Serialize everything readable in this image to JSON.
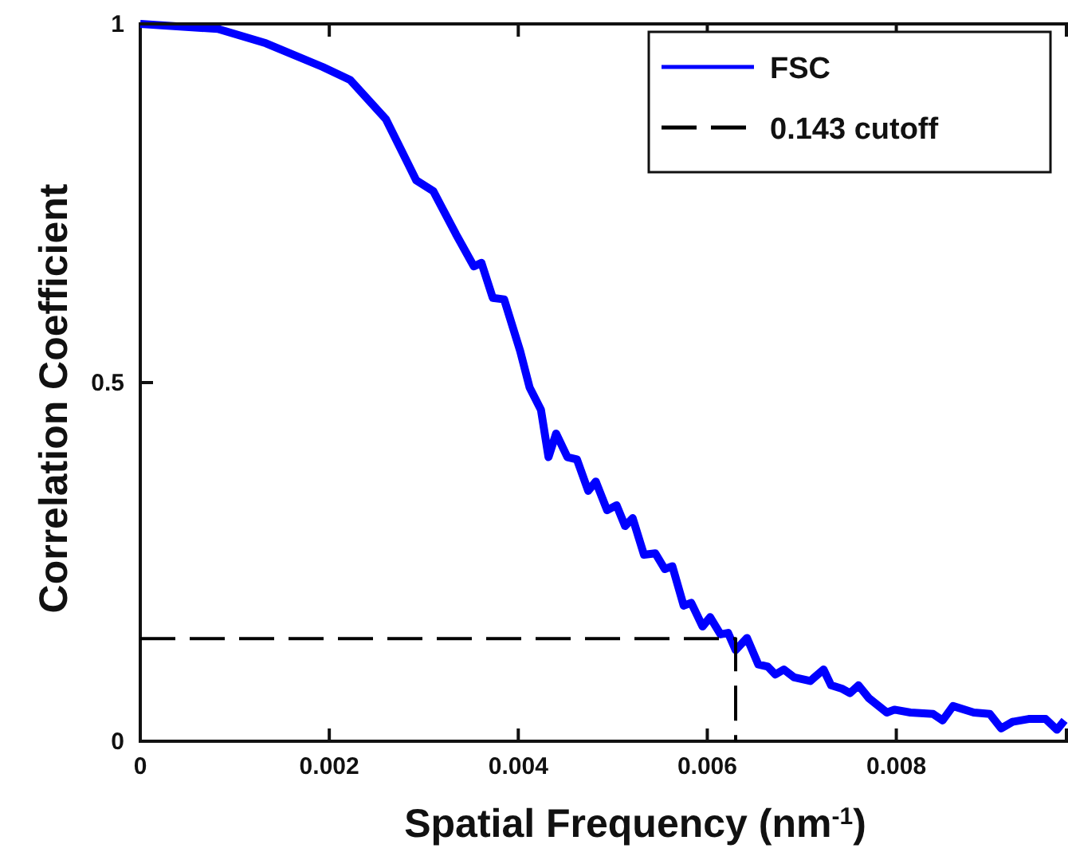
{
  "chart_data": {
    "type": "line",
    "xlabel": "Spatial Frequency (nm$^{-1}$)",
    "ylabel": "Correlation Coefficient",
    "xlim": [
      0,
      0.0098
    ],
    "ylim": [
      0,
      1
    ],
    "xticks": [
      0,
      0.002,
      0.004,
      0.006,
      0.008
    ],
    "yticks": [
      0,
      0.5,
      1
    ],
    "grid": false,
    "legend": "top right",
    "marker": "none",
    "series": [
      {
        "name": "FSC",
        "color": "#0000ff",
        "line_style": "solid",
        "x": [
          0,
          0.00082,
          0.00133,
          0.00193,
          0.00222,
          0.0026,
          0.00292,
          0.0031,
          0.00334,
          0.00353,
          0.00361,
          0.00373,
          0.00385,
          0.00402,
          0.00412,
          0.00424,
          0.00432,
          0.0044,
          0.00452,
          0.00462,
          0.00474,
          0.00482,
          0.00494,
          0.00504,
          0.00513,
          0.00521,
          0.00533,
          0.00545,
          0.00555,
          0.00563,
          0.00575,
          0.00583,
          0.00595,
          0.00603,
          0.00614,
          0.00622,
          0.0063,
          0.00642,
          0.00654,
          0.00664,
          0.00672,
          0.00681,
          0.00692,
          0.00709,
          0.00723,
          0.00731,
          0.00743,
          0.00751,
          0.0076,
          0.00771,
          0.0079,
          0.00798,
          0.00815,
          0.00839,
          0.00849,
          0.0086,
          0.00882,
          0.00899,
          0.00911,
          0.00923,
          0.0094,
          0.00958,
          0.0097,
          0.00978
        ],
        "values": [
          1,
          0.993,
          0.973,
          0.94,
          0.922,
          0.867,
          0.782,
          0.767,
          0.707,
          0.662,
          0.667,
          0.618,
          0.616,
          0.544,
          0.493,
          0.462,
          0.396,
          0.429,
          0.396,
          0.393,
          0.349,
          0.362,
          0.322,
          0.329,
          0.3,
          0.311,
          0.26,
          0.262,
          0.24,
          0.244,
          0.189,
          0.193,
          0.16,
          0.173,
          0.149,
          0.151,
          0.127,
          0.144,
          0.107,
          0.104,
          0.093,
          0.1,
          0.089,
          0.084,
          0.1,
          0.078,
          0.073,
          0.067,
          0.078,
          0.06,
          0.04,
          0.044,
          0.04,
          0.038,
          0.029,
          0.049,
          0.04,
          0.038,
          0.018,
          0.027,
          0.031,
          0.031,
          0.016,
          0.029
        ]
      },
      {
        "name": "0.143 cutoff",
        "color": "#000000",
        "line_style": "dashed",
        "x": [
          0,
          0.0063,
          0.0063
        ],
        "values": [
          0.143,
          0.143,
          0
        ]
      }
    ]
  }
}
